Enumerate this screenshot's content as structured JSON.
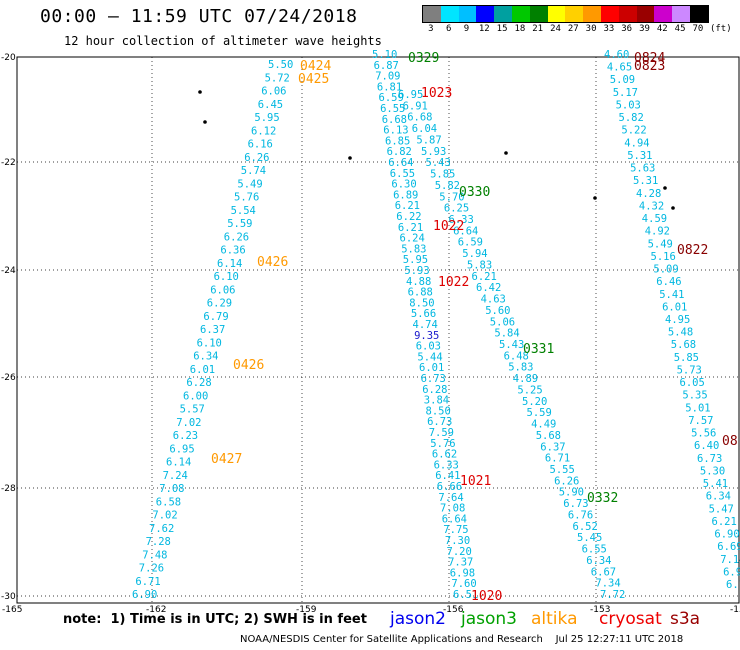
{
  "header": {
    "title": "00:00 – 11:59 UTC 07/24/2018",
    "subtitle": "12 hour collection of altimeter wave heights"
  },
  "colorbar": {
    "unit": "(ft)",
    "ticks": [
      "3",
      "6",
      "9",
      "12",
      "15",
      "18",
      "21",
      "24",
      "27",
      "30",
      "33",
      "36",
      "39",
      "42",
      "45",
      "70"
    ],
    "colors": [
      "#7f7f7f",
      "#00e5ff",
      "#00bfff",
      "#0000ff",
      "#00a0a0",
      "#00c800",
      "#008000",
      "#ffff00",
      "#ffd000",
      "#ff9900",
      "#ff0000",
      "#cc0000",
      "#990000",
      "#cc00cc",
      "#cc88ff",
      "#000000"
    ]
  },
  "axes": {
    "lat_ticks": [
      "-20",
      "-22",
      "-24",
      "-26",
      "-28",
      "-30"
    ],
    "lon_ticks": [
      "-165",
      "-162",
      "-159",
      "-156",
      "-153",
      "-15"
    ]
  },
  "tracks": [
    {
      "color": "#ff9900",
      "values": [
        "5.50",
        "5.72",
        "6.06",
        "6.45",
        "5.95",
        "6.12",
        "6.16",
        "6.26",
        "5.74",
        "5.49",
        "5.76",
        "5.54",
        "5.59",
        "6.26",
        "6.36",
        "6.14",
        "6.10",
        "6.06",
        "6.29",
        "6.79",
        "6.37",
        "6.10",
        "6.34",
        "6.01",
        "6.28",
        "6.00",
        "5.57",
        "7.02",
        "6.23",
        "6.95",
        "6.14",
        "7.24",
        "7.08",
        "6.58",
        "7.02",
        "7.62",
        "7.28",
        "7.48",
        "7.26",
        "6.71",
        "6.90"
      ]
    },
    {
      "color": "#00aa00",
      "values": [
        "5.10",
        "6.87",
        "7.09",
        "6.81",
        "6.59",
        "6.55",
        "6.68",
        "6.13",
        "6.85",
        "6.82",
        "6.64",
        "6.55",
        "6.30",
        "6.89",
        "6.21",
        "6.22",
        "6.21",
        "6.24",
        "5.83",
        "5.95",
        "5.93",
        "4.88",
        "6.88",
        "8.50",
        "5.66",
        "4.74",
        "9.35",
        "6.03",
        "5.44",
        "6.01",
        "6.73",
        "6.28",
        "3.84",
        "8.50",
        "6.73",
        "7.59",
        "5.76",
        "6.62",
        "6.33",
        "6.41",
        "6.66",
        "7.64",
        "7.08",
        "6.64",
        "7.75",
        "7.30",
        "7.20",
        "7.37",
        "6.98",
        "7.60",
        "6.51"
      ]
    },
    {
      "color": "#dd0000",
      "values": [
        "6.95",
        "6.91",
        "6.68",
        "6.04",
        "5.87",
        "5.93",
        "5.43",
        "5.85",
        "5.82",
        "5.70",
        "6.25",
        "6.33",
        "6.64",
        "6.59",
        "5.94",
        "5.83",
        "6.21",
        "6.42",
        "4.63",
        "5.60",
        "5.06",
        "5.84",
        "5.43",
        "6.48",
        "5.83",
        "4.89",
        "5.25",
        "5.20",
        "5.59",
        "4.49",
        "5.68",
        "6.37",
        "6.71",
        "5.55",
        "6.26",
        "5.90",
        "6.73",
        "6.76",
        "6.52",
        "5.45",
        "6.55",
        "6.34",
        "6.67",
        "7.34",
        "7.72"
      ]
    },
    {
      "color": "#880000",
      "values": [
        "4.60",
        "4.65",
        "5.09",
        "5.17",
        "5.03",
        "5.82",
        "5.22",
        "4.94",
        "5.31",
        "5.63",
        "5.31",
        "4.28",
        "4.32",
        "4.59",
        "4.92",
        "5.49",
        "5.16",
        "5.09",
        "6.46",
        "5.41",
        "6.01",
        "4.95",
        "5.48",
        "5.68",
        "5.85",
        "5.73",
        "6.05",
        "5.35",
        "5.01",
        "7.57",
        "5.56",
        "6.40",
        "6.73",
        "5.30",
        "5.41",
        "6.34",
        "5.47",
        "6.21",
        "6.90",
        "6.69",
        "7.14",
        "6.95",
        "6.1"
      ]
    }
  ],
  "time_labels": [
    {
      "text": "0424",
      "color": "#ff9900"
    },
    {
      "text": "0425",
      "color": "#ff9900"
    },
    {
      "text": "0426",
      "color": "#ff9900"
    },
    {
      "text": "0426",
      "color": "#ff9900"
    },
    {
      "text": "0427",
      "color": "#ff9900"
    },
    {
      "text": "0329",
      "color": "#008000"
    },
    {
      "text": "0330",
      "color": "#008000"
    },
    {
      "text": "0331",
      "color": "#008000"
    },
    {
      "text": "0332",
      "color": "#008000"
    },
    {
      "text": "1023",
      "color": "#dd0000"
    },
    {
      "text": "1022",
      "color": "#dd0000"
    },
    {
      "text": "1022",
      "color": "#dd0000"
    },
    {
      "text": "1021",
      "color": "#dd0000"
    },
    {
      "text": "1020",
      "color": "#dd0000"
    },
    {
      "text": "0824",
      "color": "#880000"
    },
    {
      "text": "0823",
      "color": "#880000"
    },
    {
      "text": "0822",
      "color": "#880000"
    },
    {
      "text": "08",
      "color": "#880000"
    }
  ],
  "note": "note:  1) Time is in UTC; 2) SWH is in feet",
  "legend": [
    {
      "label": "jason2",
      "color": "#0000ee"
    },
    {
      "label": "jason3",
      "color": "#00a000"
    },
    {
      "label": "altika",
      "color": "#ff9900"
    },
    {
      "label": "cryosat",
      "color": "#ee0000"
    },
    {
      "label": "s3a",
      "color": "#990000"
    }
  ],
  "footer": "NOAA/NESDIS Center for Satellite Applications and Research    Jul 25 12:27:11 UTC 2018"
}
